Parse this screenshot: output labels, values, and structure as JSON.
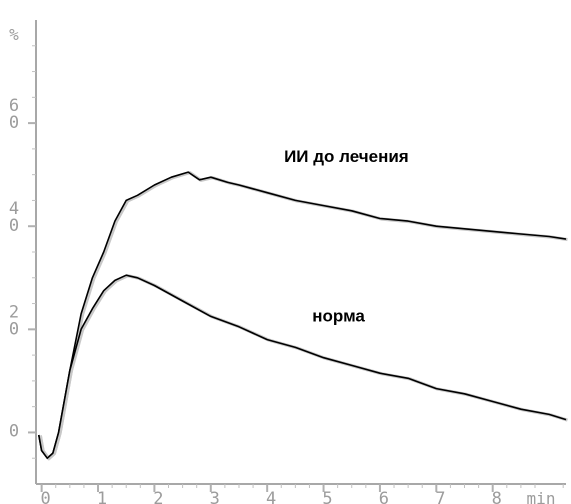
{
  "chart_data": {
    "type": "line",
    "title": "",
    "xlabel": "min",
    "ylabel": "%",
    "xlim": [
      -0.1,
      9.3
    ],
    "ylim": [
      -10,
      80
    ],
    "x_ticks": [
      {
        "value": 0,
        "label": "0"
      },
      {
        "value": 1,
        "label": "1"
      },
      {
        "value": 2,
        "label": "2"
      },
      {
        "value": 3,
        "label": "3"
      },
      {
        "value": 4,
        "label": "4"
      },
      {
        "value": 5,
        "label": "5"
      },
      {
        "value": 6,
        "label": "6"
      },
      {
        "value": 7,
        "label": "7"
      },
      {
        "value": 8,
        "label": "8"
      }
    ],
    "y_ticks": [
      {
        "value": 0,
        "label": "0"
      },
      {
        "value": 20,
        "label": "2\n0"
      },
      {
        "value": 40,
        "label": "4\n0"
      },
      {
        "value": 60,
        "label": "6\n0"
      }
    ],
    "grid": false,
    "series": [
      {
        "name": "ИИ до лечения",
        "x": [
          -0.05,
          0.0,
          0.1,
          0.2,
          0.3,
          0.5,
          0.7,
          0.9,
          1.1,
          1.3,
          1.5,
          1.7,
          2.0,
          2.3,
          2.6,
          2.8,
          3.0,
          3.3,
          3.5,
          4.0,
          4.5,
          5.0,
          5.5,
          6.0,
          6.5,
          7.0,
          7.5,
          8.0,
          8.5,
          9.0,
          9.3
        ],
        "y": [
          -0.5,
          -3.5,
          -5.0,
          -4.0,
          0.0,
          12.0,
          23.0,
          30.0,
          35.0,
          41.0,
          45.0,
          46.0,
          48.0,
          49.5,
          50.5,
          49.0,
          49.5,
          48.5,
          48.0,
          46.5,
          45.0,
          44.0,
          43.0,
          41.5,
          41.0,
          40.0,
          39.5,
          39.0,
          38.5,
          38.0,
          37.5
        ]
      },
      {
        "name": "норма",
        "x": [
          -0.05,
          0.0,
          0.1,
          0.2,
          0.3,
          0.5,
          0.7,
          0.9,
          1.1,
          1.3,
          1.5,
          1.7,
          2.0,
          2.5,
          3.0,
          3.5,
          4.0,
          4.5,
          5.0,
          5.5,
          6.0,
          6.5,
          7.0,
          7.5,
          8.0,
          8.5,
          9.0,
          9.3
        ],
        "y": [
          -0.5,
          -3.5,
          -5.0,
          -4.0,
          0.0,
          12.0,
          20.0,
          24.0,
          27.5,
          29.5,
          30.5,
          30.0,
          28.5,
          25.5,
          22.5,
          20.5,
          18.0,
          16.5,
          14.5,
          13.0,
          11.5,
          10.5,
          8.5,
          7.5,
          6.0,
          4.5,
          3.5,
          2.5
        ]
      }
    ],
    "annotations": [
      {
        "text": "ИИ до лечения",
        "x": 4.3,
        "y": 52.5
      },
      {
        "text": "норма",
        "x": 4.8,
        "y": 21.5
      }
    ]
  }
}
